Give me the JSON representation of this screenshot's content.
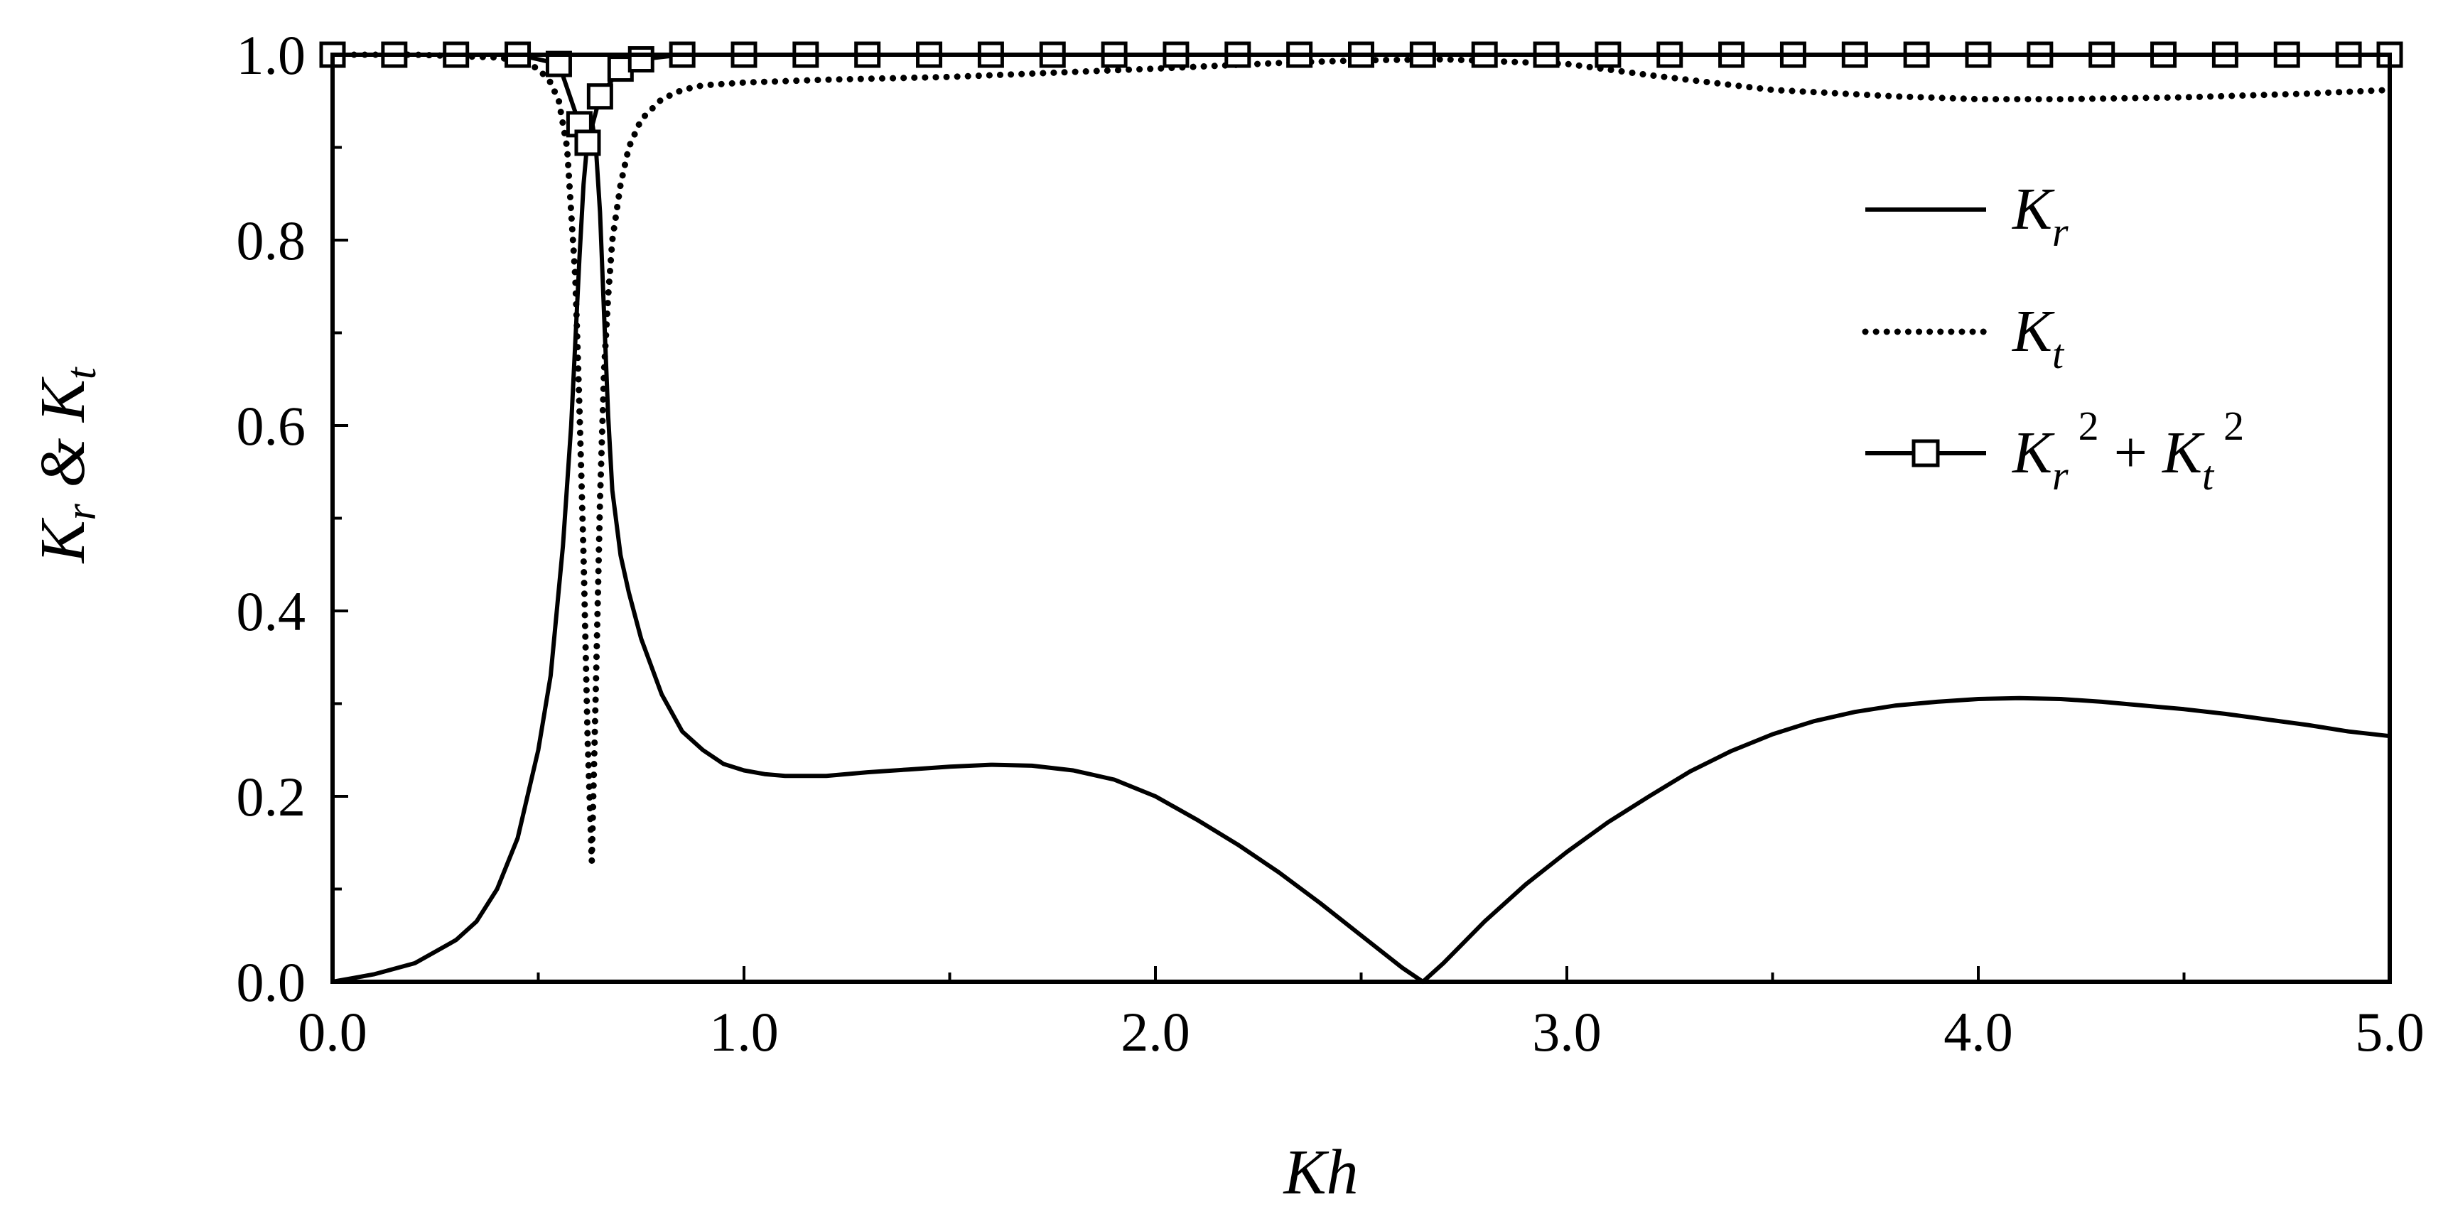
{
  "chart_data": {
    "type": "line",
    "title": "",
    "xlabel": "Kh",
    "ylabel": {
      "base1": "K",
      "sub1": "r",
      "amp": " & ",
      "base2": "K",
      "sub2": "t"
    },
    "xlim": [
      0.0,
      5.0
    ],
    "ylim": [
      0.0,
      1.0
    ],
    "x_ticks": [
      0.0,
      1.0,
      2.0,
      3.0,
      4.0,
      5.0
    ],
    "x_tick_labels": [
      "0.0",
      "1.0",
      "2.0",
      "3.0",
      "4.0",
      "5.0"
    ],
    "x_minor_step": 0.5,
    "y_ticks": [
      0.0,
      0.2,
      0.4,
      0.6,
      0.8,
      1.0
    ],
    "y_tick_labels": [
      "0.0",
      "0.2",
      "0.4",
      "0.6",
      "0.8",
      "1.0"
    ],
    "y_minor_step": 0.1,
    "grid": false,
    "legend_position": "right",
    "legend": [
      {
        "base": "K",
        "sub": "r",
        "style": "solid"
      },
      {
        "base": "K",
        "sub": "t",
        "style": "dotted"
      },
      {
        "base1": "K",
        "sub1": "r",
        "sup1": "2",
        "plus": " + ",
        "base2": "K",
        "sub2": "t",
        "sup2": "2",
        "style": "solid-square"
      }
    ],
    "series": [
      {
        "name": "Kr",
        "style": "solid",
        "x": [
          0.0,
          0.1,
          0.2,
          0.3,
          0.35,
          0.4,
          0.45,
          0.5,
          0.53,
          0.56,
          0.58,
          0.6,
          0.61,
          0.62,
          0.63,
          0.64,
          0.65,
          0.66,
          0.67,
          0.68,
          0.7,
          0.72,
          0.75,
          0.8,
          0.85,
          0.9,
          0.95,
          1.0,
          1.05,
          1.1,
          1.2,
          1.3,
          1.4,
          1.5,
          1.6,
          1.7,
          1.8,
          1.9,
          2.0,
          2.1,
          2.2,
          2.3,
          2.4,
          2.5,
          2.6,
          2.65,
          2.7,
          2.8,
          2.9,
          3.0,
          3.1,
          3.2,
          3.3,
          3.4,
          3.5,
          3.6,
          3.7,
          3.8,
          3.9,
          4.0,
          4.1,
          4.2,
          4.3,
          4.4,
          4.5,
          4.6,
          4.7,
          4.8,
          4.9,
          5.0
        ],
        "y": [
          0.0,
          0.008,
          0.02,
          0.045,
          0.065,
          0.1,
          0.155,
          0.25,
          0.33,
          0.47,
          0.6,
          0.78,
          0.86,
          0.91,
          0.93,
          0.9,
          0.83,
          0.72,
          0.61,
          0.53,
          0.46,
          0.42,
          0.37,
          0.31,
          0.27,
          0.25,
          0.235,
          0.228,
          0.224,
          0.222,
          0.222,
          0.226,
          0.229,
          0.232,
          0.234,
          0.233,
          0.228,
          0.218,
          0.2,
          0.175,
          0.148,
          0.118,
          0.085,
          0.05,
          0.015,
          0.0,
          0.02,
          0.065,
          0.105,
          0.14,
          0.172,
          0.2,
          0.227,
          0.249,
          0.267,
          0.281,
          0.291,
          0.298,
          0.302,
          0.305,
          0.306,
          0.305,
          0.302,
          0.298,
          0.294,
          0.289,
          0.283,
          0.277,
          0.27,
          0.265
        ]
      },
      {
        "name": "Kt",
        "style": "dotted",
        "x": [
          0.0,
          0.2,
          0.4,
          0.45,
          0.5,
          0.53,
          0.55,
          0.57,
          0.59,
          0.6,
          0.61,
          0.62,
          0.63,
          0.64,
          0.65,
          0.66,
          0.67,
          0.68,
          0.7,
          0.72,
          0.75,
          0.8,
          0.85,
          0.9,
          1.0,
          1.2,
          1.5,
          2.0,
          2.3,
          2.5,
          2.7,
          3.0,
          3.2,
          3.5,
          3.8,
          4.0,
          4.2,
          4.5,
          4.8,
          5.0
        ],
        "y": [
          1.0,
          1.0,
          0.997,
          0.994,
          0.985,
          0.97,
          0.95,
          0.9,
          0.76,
          0.62,
          0.46,
          0.26,
          0.13,
          0.32,
          0.52,
          0.66,
          0.74,
          0.8,
          0.86,
          0.9,
          0.93,
          0.952,
          0.962,
          0.967,
          0.97,
          0.973,
          0.976,
          0.985,
          0.991,
          0.994,
          0.995,
          0.99,
          0.978,
          0.962,
          0.955,
          0.952,
          0.952,
          0.954,
          0.958,
          0.962
        ]
      },
      {
        "name": "Kr2+Kt2",
        "style": "solid-square",
        "x": [
          0.0,
          0.15,
          0.3,
          0.45,
          0.55,
          0.6,
          0.62,
          0.65,
          0.7,
          0.75,
          0.85,
          1.0,
          1.15,
          1.3,
          1.45,
          1.6,
          1.75,
          1.9,
          2.05,
          2.2,
          2.35,
          2.5,
          2.65,
          2.8,
          2.95,
          3.1,
          3.25,
          3.4,
          3.55,
          3.7,
          3.85,
          4.0,
          4.15,
          4.3,
          4.45,
          4.6,
          4.75,
          4.9,
          5.0
        ],
        "y": [
          1.0,
          1.0,
          1.0,
          1.0,
          0.99,
          0.925,
          0.905,
          0.955,
          0.985,
          0.995,
          1.0,
          1.0,
          1.0,
          1.0,
          1.0,
          1.0,
          1.0,
          1.0,
          1.0,
          1.0,
          1.0,
          1.0,
          1.0,
          1.0,
          1.0,
          1.0,
          1.0,
          1.0,
          1.0,
          1.0,
          1.0,
          1.0,
          1.0,
          1.0,
          1.0,
          1.0,
          1.0,
          1.0,
          1.0
        ]
      }
    ]
  }
}
